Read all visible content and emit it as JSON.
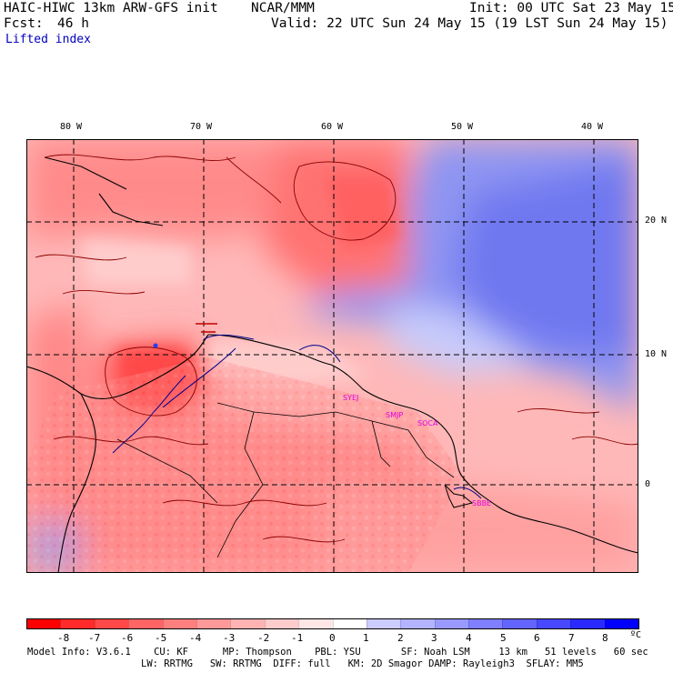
{
  "header": {
    "model": "HAIC-HIWC 13km ARW-GFS init",
    "org": "NCAR/MMM",
    "init": "Init: 00 UTC Sat 23 May 15",
    "fcst_label": "Fcst:",
    "fcst_value": "46 h",
    "valid": "Valid: 22 UTC Sun 24 May 15 (19 LST Sun 24 May 15)",
    "field": "Lifted index"
  },
  "map": {
    "lon_labels": [
      "80 W",
      "70 W",
      "60 W",
      "50 W",
      "40 W"
    ],
    "lat_labels": [
      "20 N",
      "10 N",
      "0"
    ],
    "stations": [
      "SYEJ",
      "SMJP",
      "SOCA",
      "SBBE"
    ],
    "colors": {
      "land_outline": "#000000",
      "water_outline": "#00008b",
      "contour": "#8b0000",
      "station": "#e000e0"
    }
  },
  "colorbar": {
    "labels": [
      "-8",
      "-7",
      "-6",
      "-5",
      "-4",
      "-3",
      "-2",
      "-1",
      "0",
      "1",
      "2",
      "3",
      "4",
      "5",
      "6",
      "7",
      "8"
    ],
    "unit": "ºC",
    "colors": [
      "#ff0000",
      "#ff2a2a",
      "#ff4848",
      "#ff6464",
      "#ff7f7f",
      "#ff9999",
      "#ffb3b3",
      "#ffcccc",
      "#ffe6e6",
      "#ffffff",
      "#ccccff",
      "#b3b3ff",
      "#9999ff",
      "#7f7fff",
      "#6464ff",
      "#4848ff",
      "#2a2aff",
      "#0000ff"
    ]
  },
  "footer": {
    "line1": "Model Info: V3.6.1    CU: KF      MP: Thompson    PBL: YSU       SF: Noah LSM     13 km   51 levels   60 sec",
    "line2": "LW: RRTMG   SW: RRTMG  DIFF: full   KM: 2D Smagor DAMP: Rayleigh3  SFLAY: MM5"
  }
}
